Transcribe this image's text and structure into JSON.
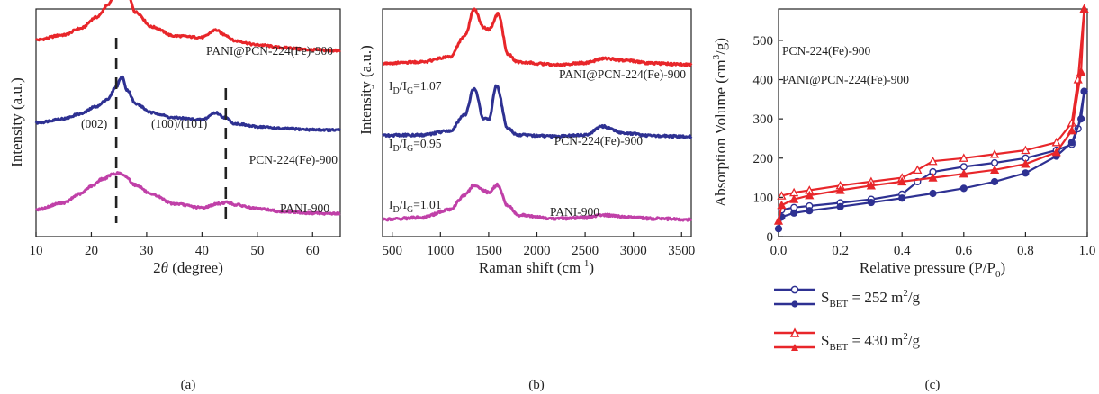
{
  "chart_data": [
    {
      "type": "line",
      "panel_label": "(a)",
      "xlabel_pre": "2",
      "xlabel_italic": "θ",
      "xlabel_post": " (degree)",
      "ylabel": "Intensity (a.u.)",
      "xlim": [
        10,
        65
      ],
      "xticks": [
        "10",
        "20",
        "30",
        "40",
        "50",
        "60"
      ],
      "annotations": [
        "(002)",
        "(100)/(101)"
      ],
      "reference_lines_x": [
        24.5,
        44.3
      ],
      "series": [
        {
          "name": "PANI@PCN-224(Fe)-900",
          "color": "#e8262a",
          "x": [
            10,
            15,
            18,
            21,
            23,
            24.5,
            25.5,
            26.5,
            28,
            31,
            35,
            40,
            42.5,
            44,
            46,
            50,
            55,
            60,
            65
          ],
          "y": [
            0.52,
            0.62,
            0.75,
            0.98,
            1.22,
            1.55,
            1.7,
            1.45,
            1.08,
            0.78,
            0.6,
            0.57,
            0.72,
            0.63,
            0.5,
            0.42,
            0.36,
            0.32,
            0.3
          ]
        },
        {
          "name": "PCN-224(Fe)-900",
          "color": "#2e3192",
          "x": [
            10,
            15,
            18,
            21,
            23,
            24.5,
            25.5,
            26.5,
            28,
            31,
            35,
            40,
            42.5,
            44,
            46,
            50,
            55,
            60,
            65
          ],
          "y": [
            0.52,
            0.6,
            0.7,
            0.85,
            1.0,
            1.25,
            1.45,
            1.18,
            0.9,
            0.72,
            0.62,
            0.58,
            0.72,
            0.63,
            0.5,
            0.44,
            0.4,
            0.38,
            0.37
          ]
        },
        {
          "name": "PANI-900",
          "color": "#c040a8",
          "x": [
            10,
            15,
            18,
            20,
            22,
            24,
            25,
            26,
            28,
            31,
            35,
            40,
            43,
            44.5,
            46,
            50,
            55,
            60,
            65
          ],
          "y": [
            0.18,
            0.32,
            0.5,
            0.66,
            0.8,
            0.9,
            0.92,
            0.86,
            0.68,
            0.48,
            0.3,
            0.22,
            0.3,
            0.33,
            0.28,
            0.2,
            0.14,
            0.11,
            0.1
          ]
        }
      ]
    },
    {
      "type": "line",
      "panel_label": "(b)",
      "xlabel": "Raman shift (cm",
      "xlabel_sup": "-1",
      "xlabel_end": ")",
      "ylabel": "Intensity (a.u.)",
      "xlim": [
        400,
        3600
      ],
      "xticks": [
        "500",
        "1000",
        "1500",
        "2000",
        "2500",
        "3000",
        "3500"
      ],
      "ratio_prefix": "I",
      "ratio_sub_d": "D",
      "ratio_slash": "/I",
      "ratio_sub_g": "G",
      "series": [
        {
          "name": "PANI@PCN-224(Fe)-900",
          "ratio": "=1.07",
          "color": "#e8262a",
          "x": [
            400,
            800,
            1100,
            1250,
            1350,
            1450,
            1500,
            1600,
            1700,
            1800,
            2200,
            2500,
            2700,
            2900,
            3200,
            3600
          ],
          "y": [
            0.35,
            0.38,
            0.5,
            0.95,
            1.55,
            1.15,
            1.1,
            1.45,
            0.55,
            0.38,
            0.32,
            0.36,
            0.46,
            0.42,
            0.35,
            0.32
          ]
        },
        {
          "name": "PCN-224(Fe)-900",
          "ratio": "=0.95",
          "color": "#2e3192",
          "x": [
            400,
            800,
            1100,
            1250,
            1350,
            1450,
            1500,
            1580,
            1700,
            1800,
            2200,
            2500,
            2680,
            2900,
            3200,
            3600
          ],
          "y": [
            0.35,
            0.36,
            0.45,
            0.8,
            1.4,
            0.72,
            0.7,
            1.45,
            0.5,
            0.36,
            0.33,
            0.36,
            0.55,
            0.4,
            0.34,
            0.32
          ]
        },
        {
          "name": "PANI-900",
          "ratio": "=1.01",
          "color": "#c040a8",
          "x": [
            400,
            800,
            1100,
            1250,
            1350,
            1450,
            1500,
            1590,
            1700,
            1800,
            2200,
            2500,
            2700,
            2900,
            3200,
            3600
          ],
          "y": [
            0.08,
            0.12,
            0.3,
            0.62,
            0.85,
            0.72,
            0.68,
            0.85,
            0.38,
            0.18,
            0.1,
            0.12,
            0.18,
            0.14,
            0.1,
            0.08
          ]
        }
      ]
    },
    {
      "type": "line",
      "panel_label": "(c)",
      "xlabel": "Relative pressure (P/P",
      "xlabel_sub": "0",
      "xlabel_end": ")",
      "ylabel_pre": "Absorption Volume (cm",
      "ylabel_sup": "3",
      "ylabel_post": "/g)",
      "xlim": [
        0,
        1.0
      ],
      "ylim": [
        0,
        580
      ],
      "xticks": [
        "0.0",
        "0.2",
        "0.4",
        "0.6",
        "0.8",
        "1.0"
      ],
      "yticks": [
        "0",
        "100",
        "200",
        "300",
        "400",
        "500"
      ],
      "text_labels": [
        "PCN-224(Fe)-900",
        "PANI@PCN-224(Fe)-900"
      ],
      "legend_position": "bottom",
      "series": [
        {
          "name_prefix": "S",
          "name_sub": "BET",
          "name_mid": " = 252 m",
          "name_sup": "2",
          "name_end": "/g",
          "color": "#2e3192",
          "adsorption": {
            "x": [
              0.0,
              0.01,
              0.05,
              0.1,
              0.2,
              0.3,
              0.4,
              0.5,
              0.6,
              0.7,
              0.8,
              0.9,
              0.95,
              0.98,
              0.99
            ],
            "y": [
              20,
              50,
              60,
              66,
              76,
              87,
              98,
              110,
              123,
              140,
              162,
              205,
              240,
              300,
              370
            ]
          },
          "desorption": {
            "x": [
              0.99,
              0.97,
              0.95,
              0.9,
              0.8,
              0.7,
              0.6,
              0.5,
              0.45,
              0.4,
              0.3,
              0.2,
              0.1,
              0.05,
              0.01
            ],
            "y": [
              370,
              275,
              235,
              220,
              200,
              188,
              178,
              165,
              140,
              108,
              95,
              86,
              78,
              74,
              68
            ]
          }
        },
        {
          "name_prefix": "S",
          "name_sub": "BET",
          "name_mid": " = 430 m",
          "name_sup": "2",
          "name_end": "/g",
          "color": "#e8262a",
          "adsorption": {
            "x": [
              0.0,
              0.01,
              0.05,
              0.1,
              0.2,
              0.3,
              0.4,
              0.5,
              0.6,
              0.7,
              0.8,
              0.9,
              0.95,
              0.98,
              0.99
            ],
            "y": [
              40,
              80,
              95,
              105,
              118,
              130,
              140,
              150,
              160,
              170,
              185,
              215,
              270,
              420,
              580
            ]
          },
          "desorption": {
            "x": [
              0.99,
              0.97,
              0.95,
              0.9,
              0.8,
              0.7,
              0.6,
              0.5,
              0.45,
              0.4,
              0.3,
              0.2,
              0.1,
              0.05,
              0.01
            ],
            "y": [
              580,
              400,
              290,
              240,
              220,
              210,
              200,
              192,
              170,
              150,
              140,
              130,
              118,
              112,
              104
            ]
          }
        }
      ]
    }
  ]
}
